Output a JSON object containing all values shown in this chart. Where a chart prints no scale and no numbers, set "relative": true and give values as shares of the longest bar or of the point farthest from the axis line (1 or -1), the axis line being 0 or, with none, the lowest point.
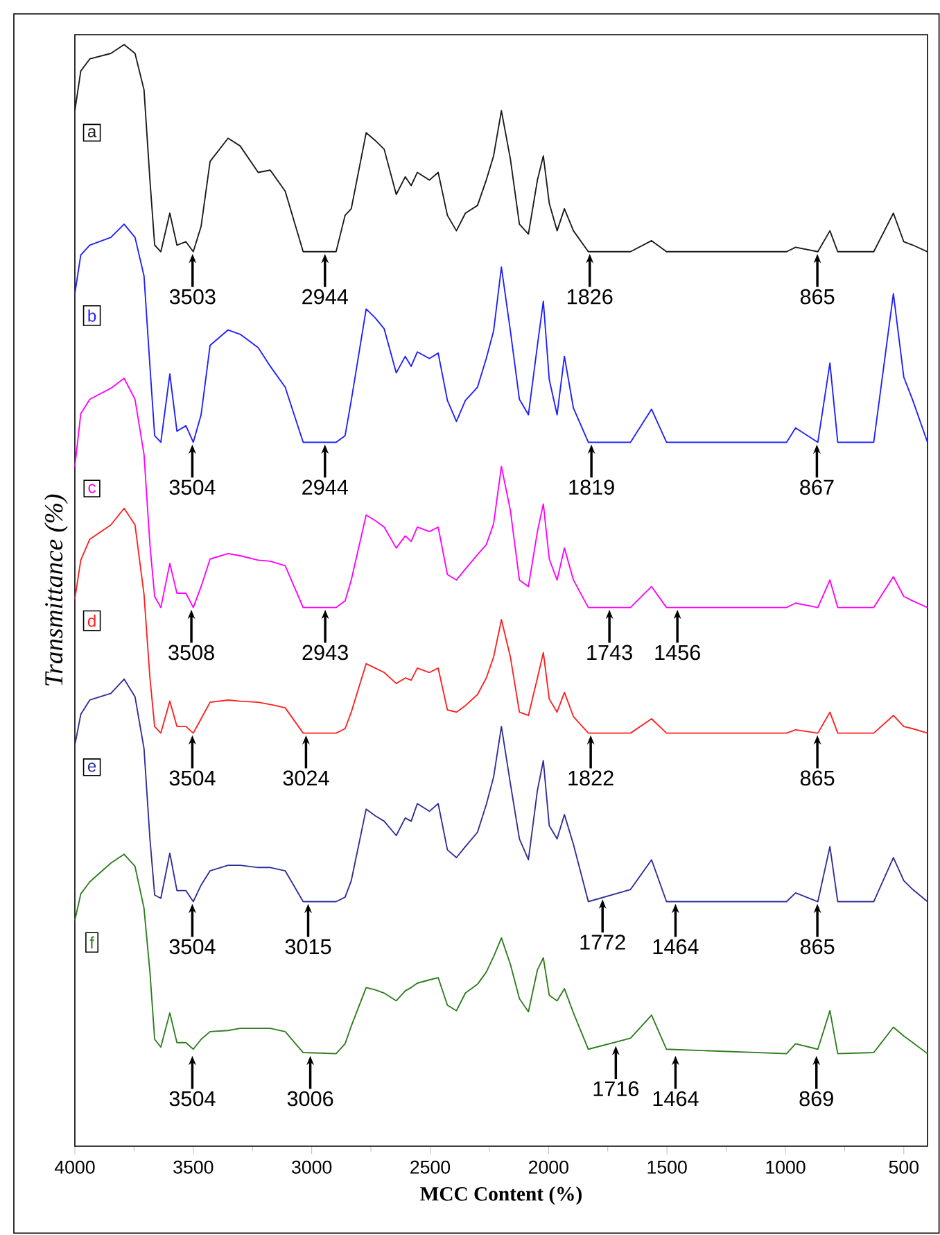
{
  "chart_data": {
    "type": "line",
    "relative": true,
    "xlabel": "MCC Content (%)",
    "ylabel": "Transmittance (%)",
    "xlim": [
      4000,
      400
    ],
    "xticks": [
      4000,
      3500,
      3000,
      2500,
      2000,
      1500,
      1000,
      500
    ],
    "line_style": "solid",
    "x": [
      4000,
      3975,
      3937,
      3848,
      3792,
      3746,
      3708,
      3683,
      3663,
      3637,
      3599,
      3569,
      3531,
      3500,
      3467,
      3429,
      3353,
      3302,
      3226,
      3175,
      3112,
      3036,
      2897,
      2859,
      2833,
      2770,
      2732,
      2694,
      2643,
      2605,
      2580,
      2554,
      2503,
      2466,
      2427,
      2389,
      2351,
      2300,
      2263,
      2232,
      2199,
      2161,
      2123,
      2085,
      2047,
      2022,
      1997,
      1964,
      1933,
      1895,
      1832,
      1654,
      1565,
      1502,
      995,
      957,
      863,
      812,
      779,
      627,
      544,
      500,
      462,
      400
    ],
    "series": [
      {
        "name": "a",
        "color": "#1a1a1a",
        "values": [
          0.94,
          0.976,
          0.987,
          0.992,
          1.0,
          0.992,
          0.959,
          0.877,
          0.818,
          0.812,
          0.847,
          0.818,
          0.821,
          0.812,
          0.835,
          0.894,
          0.915,
          0.908,
          0.884,
          0.886,
          0.867,
          0.812,
          0.812,
          0.845,
          0.851,
          0.92,
          0.913,
          0.905,
          0.864,
          0.88,
          0.872,
          0.884,
          0.877,
          0.884,
          0.845,
          0.831,
          0.847,
          0.854,
          0.877,
          0.899,
          0.94,
          0.896,
          0.837,
          0.828,
          0.877,
          0.899,
          0.856,
          0.831,
          0.851,
          0.831,
          0.812,
          0.812,
          0.822,
          0.812,
          0.812,
          0.816,
          0.812,
          0.831,
          0.812,
          0.812,
          0.847,
          0.821,
          0.818,
          0.812
        ]
      },
      {
        "name": "b",
        "color": "#1f1fff",
        "values": [
          0.774,
          0.809,
          0.818,
          0.825,
          0.837,
          0.825,
          0.79,
          0.708,
          0.645,
          0.639,
          0.701,
          0.649,
          0.654,
          0.639,
          0.664,
          0.727,
          0.741,
          0.737,
          0.725,
          0.708,
          0.689,
          0.639,
          0.639,
          0.645,
          0.677,
          0.76,
          0.752,
          0.742,
          0.702,
          0.717,
          0.708,
          0.721,
          0.715,
          0.72,
          0.677,
          0.658,
          0.677,
          0.689,
          0.715,
          0.74,
          0.798,
          0.74,
          0.678,
          0.664,
          0.727,
          0.767,
          0.696,
          0.664,
          0.717,
          0.67,
          0.639,
          0.639,
          0.669,
          0.639,
          0.639,
          0.652,
          0.639,
          0.711,
          0.639,
          0.639,
          0.774,
          0.698,
          0.677,
          0.639
        ]
      },
      {
        "name": "c",
        "color": "#ff00ff",
        "values": [
          0.617,
          0.665,
          0.678,
          0.688,
          0.697,
          0.678,
          0.628,
          0.546,
          0.499,
          0.489,
          0.529,
          0.502,
          0.502,
          0.489,
          0.508,
          0.533,
          0.538,
          0.536,
          0.532,
          0.531,
          0.527,
          0.489,
          0.489,
          0.495,
          0.514,
          0.573,
          0.568,
          0.562,
          0.543,
          0.554,
          0.549,
          0.562,
          0.558,
          0.562,
          0.519,
          0.514,
          0.524,
          0.537,
          0.546,
          0.565,
          0.617,
          0.577,
          0.514,
          0.508,
          0.558,
          0.583,
          0.533,
          0.514,
          0.543,
          0.514,
          0.489,
          0.489,
          0.508,
          0.489,
          0.489,
          0.493,
          0.489,
          0.514,
          0.489,
          0.489,
          0.517,
          0.499,
          0.495,
          0.489
        ]
      },
      {
        "name": "d",
        "color": "#ff2020",
        "values": [
          0.497,
          0.532,
          0.551,
          0.564,
          0.579,
          0.564,
          0.501,
          0.425,
          0.381,
          0.375,
          0.404,
          0.381,
          0.381,
          0.375,
          0.388,
          0.403,
          0.405,
          0.404,
          0.403,
          0.401,
          0.398,
          0.375,
          0.375,
          0.379,
          0.394,
          0.438,
          0.434,
          0.43,
          0.42,
          0.425,
          0.423,
          0.434,
          0.43,
          0.434,
          0.396,
          0.394,
          0.4,
          0.41,
          0.425,
          0.444,
          0.478,
          0.444,
          0.394,
          0.391,
          0.425,
          0.448,
          0.406,
          0.394,
          0.412,
          0.39,
          0.375,
          0.375,
          0.388,
          0.375,
          0.375,
          0.378,
          0.375,
          0.394,
          0.375,
          0.375,
          0.391,
          0.381,
          0.379,
          0.375
        ]
      },
      {
        "name": "e",
        "color": "#2e2e99",
        "values": [
          0.364,
          0.392,
          0.405,
          0.411,
          0.424,
          0.408,
          0.361,
          0.279,
          0.228,
          0.225,
          0.266,
          0.232,
          0.232,
          0.222,
          0.237,
          0.25,
          0.255,
          0.255,
          0.253,
          0.253,
          0.25,
          0.222,
          0.222,
          0.226,
          0.241,
          0.306,
          0.3,
          0.295,
          0.282,
          0.298,
          0.295,
          0.311,
          0.304,
          0.311,
          0.269,
          0.262,
          0.272,
          0.285,
          0.31,
          0.335,
          0.381,
          0.329,
          0.279,
          0.26,
          0.323,
          0.35,
          0.291,
          0.279,
          0.301,
          0.274,
          0.222,
          0.233,
          0.26,
          0.222,
          0.222,
          0.23,
          0.222,
          0.272,
          0.222,
          0.222,
          0.262,
          0.241,
          0.233,
          0.222
        ]
      },
      {
        "name": "f",
        "color": "#2e7d1e",
        "values": [
          0.205,
          0.229,
          0.24,
          0.257,
          0.265,
          0.254,
          0.216,
          0.158,
          0.097,
          0.09,
          0.121,
          0.094,
          0.094,
          0.088,
          0.097,
          0.104,
          0.105,
          0.107,
          0.107,
          0.107,
          0.104,
          0.085,
          0.084,
          0.093,
          0.109,
          0.144,
          0.142,
          0.139,
          0.132,
          0.141,
          0.144,
          0.148,
          0.151,
          0.153,
          0.128,
          0.123,
          0.139,
          0.147,
          0.158,
          0.172,
          0.189,
          0.165,
          0.134,
          0.122,
          0.16,
          0.171,
          0.137,
          0.132,
          0.143,
          0.121,
          0.088,
          0.098,
          0.119,
          0.088,
          0.084,
          0.093,
          0.088,
          0.123,
          0.084,
          0.085,
          0.108,
          0.1,
          0.094,
          0.084
        ]
      }
    ],
    "annotations": [
      {
        "text": "3503",
        "x": 3503,
        "y": 0.812
      },
      {
        "text": "2944",
        "x": 2944,
        "y": 0.812
      },
      {
        "text": "1826",
        "x": 1826,
        "y": 0.812
      },
      {
        "text": "865",
        "x": 865,
        "y": 0.812
      },
      {
        "text": "3504",
        "x": 3504,
        "y": 0.639
      },
      {
        "text": "2944",
        "x": 2944,
        "y": 0.639
      },
      {
        "text": "1819",
        "x": 1819,
        "y": 0.639
      },
      {
        "text": "867",
        "x": 867,
        "y": 0.639
      },
      {
        "text": "3508",
        "x": 3508,
        "y": 0.489
      },
      {
        "text": "2943",
        "x": 2943,
        "y": 0.489
      },
      {
        "text": "1743",
        "x": 1743,
        "y": 0.489
      },
      {
        "text": "1456",
        "x": 1456,
        "y": 0.489
      },
      {
        "text": "3504",
        "x": 3504,
        "y": 0.375
      },
      {
        "text": "3024",
        "x": 3024,
        "y": 0.375
      },
      {
        "text": "1822",
        "x": 1822,
        "y": 0.375
      },
      {
        "text": "865",
        "x": 865,
        "y": 0.375
      },
      {
        "text": "3504",
        "x": 3504,
        "y": 0.222
      },
      {
        "text": "3015",
        "x": 3015,
        "y": 0.222
      },
      {
        "text": "1772",
        "x": 1772,
        "y": 0.226
      },
      {
        "text": "1464",
        "x": 1464,
        "y": 0.222
      },
      {
        "text": "865",
        "x": 865,
        "y": 0.222
      },
      {
        "text": "3504",
        "x": 3504,
        "y": 0.084
      },
      {
        "text": "3006",
        "x": 3006,
        "y": 0.084
      },
      {
        "text": "1716",
        "x": 1716,
        "y": 0.093
      },
      {
        "text": "1464",
        "x": 1464,
        "y": 0.084
      },
      {
        "text": "869",
        "x": 869,
        "y": 0.084
      }
    ]
  }
}
